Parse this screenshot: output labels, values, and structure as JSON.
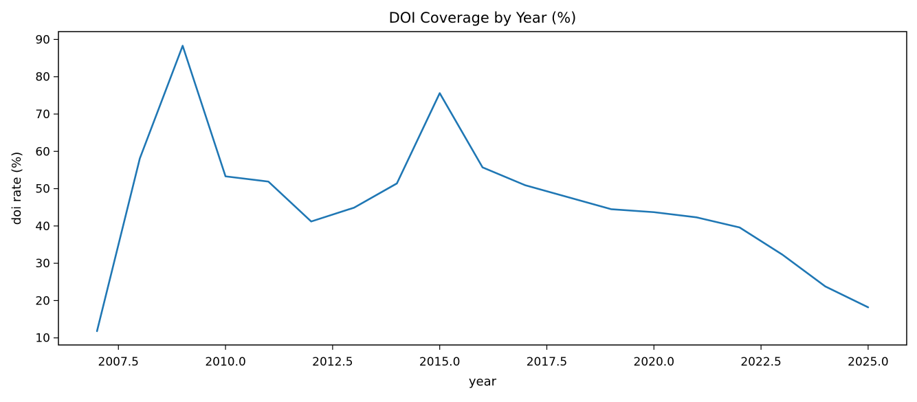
{
  "chart_data": {
    "type": "line",
    "title": "DOI Coverage by Year (%)",
    "xlabel": "year",
    "ylabel": "doi rate (%)",
    "xlim": [
      2006.1,
      2025.9
    ],
    "ylim": [
      8.1,
      92.1
    ],
    "x_ticks": [
      2007.5,
      2010.0,
      2012.5,
      2015.0,
      2017.5,
      2020.0,
      2022.5,
      2025.0
    ],
    "x_tick_labels": [
      "2007.5",
      "2010.0",
      "2012.5",
      "2015.0",
      "2017.5",
      "2020.0",
      "2022.5",
      "2025.0"
    ],
    "y_ticks": [
      10,
      20,
      30,
      40,
      50,
      60,
      70,
      80,
      90
    ],
    "y_tick_labels": [
      "10",
      "20",
      "30",
      "40",
      "50",
      "60",
      "70",
      "80",
      "90"
    ],
    "grid": false,
    "series": [
      {
        "color": "#1f77b4",
        "x": [
          2007,
          2008,
          2009,
          2010,
          2011,
          2012,
          2013,
          2014,
          2015,
          2016,
          2017,
          2018,
          2019,
          2020,
          2021,
          2022,
          2023,
          2024,
          2025
        ],
        "y": [
          11.8,
          58.1,
          88.3,
          53.3,
          51.9,
          41.2,
          44.9,
          51.4,
          75.6,
          55.7,
          50.9,
          47.7,
          44.5,
          43.7,
          42.3,
          39.6,
          32.3,
          23.8,
          18.2
        ]
      }
    ]
  }
}
